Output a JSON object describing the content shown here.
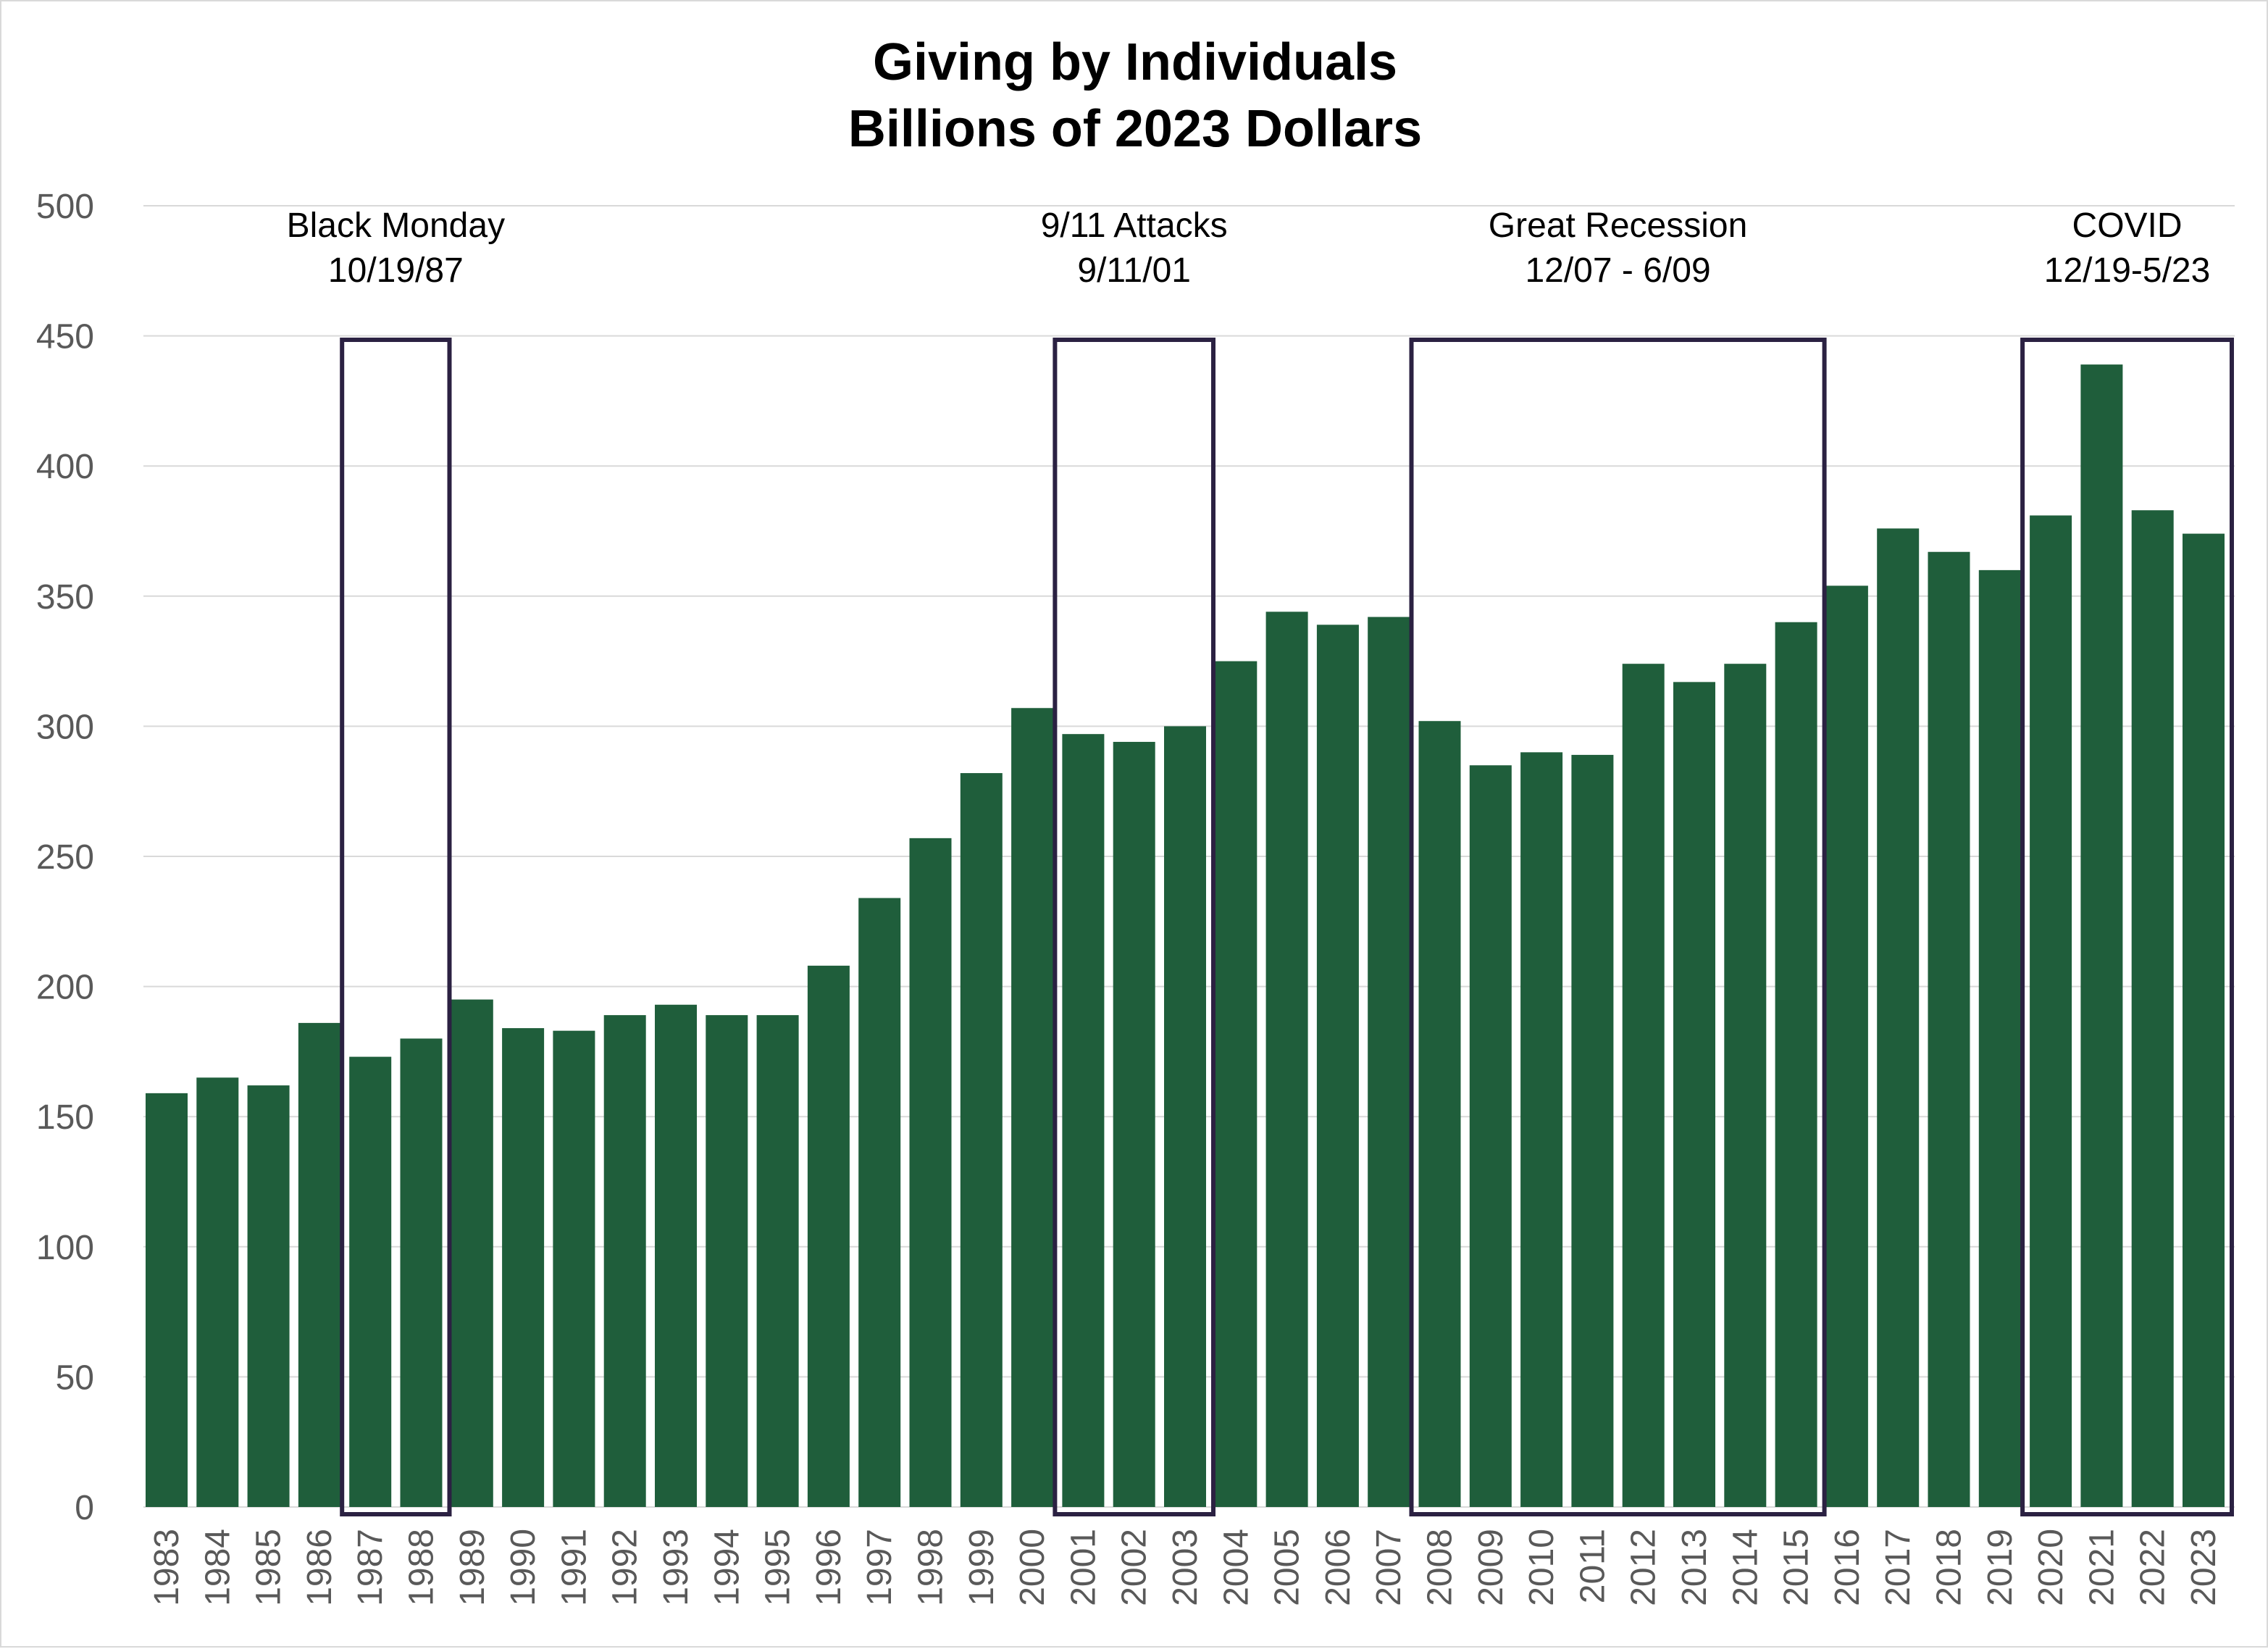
{
  "chart_data": {
    "type": "bar",
    "title": [
      "Giving by Individuals",
      "Billions of 2023 Dollars"
    ],
    "xlabel": "",
    "ylabel": "",
    "ylim": [
      0,
      500
    ],
    "yticks": [
      0,
      50,
      100,
      150,
      200,
      250,
      300,
      350,
      400,
      450,
      500
    ],
    "grid": true,
    "colors": {
      "bar": "#1f5e3b",
      "box": "#2b2142",
      "grid": "#d9d9d9",
      "tick": "#595959"
    },
    "categories": [
      "1983",
      "1984",
      "1985",
      "1986",
      "1987",
      "1988",
      "1989",
      "1990",
      "1991",
      "1992",
      "1993",
      "1994",
      "1995",
      "1996",
      "1997",
      "1998",
      "1999",
      "2000",
      "2001",
      "2002",
      "2003",
      "2004",
      "2005",
      "2006",
      "2007",
      "2008",
      "2009",
      "2010",
      "2011",
      "2012",
      "2013",
      "2014",
      "2015",
      "2016",
      "2017",
      "2018",
      "2019",
      "2020",
      "2021",
      "2022",
      "2023"
    ],
    "values": [
      159,
      165,
      162,
      186,
      173,
      180,
      195,
      184,
      183,
      189,
      193,
      189,
      189,
      208,
      234,
      257,
      282,
      307,
      297,
      294,
      300,
      325,
      344,
      339,
      342,
      302,
      285,
      290,
      289,
      324,
      317,
      324,
      340,
      354,
      376,
      367,
      360,
      381,
      439,
      383,
      374
    ],
    "annotations": [
      {
        "lines": [
          "Black Monday",
          "10/19/87"
        ],
        "from": "1987",
        "to": "1988"
      },
      {
        "lines": [
          "9/11 Attacks",
          "9/11/01"
        ],
        "from": "2001",
        "to": "2003"
      },
      {
        "lines": [
          "Great Recession",
          "12/07 - 6/09"
        ],
        "from": "2008",
        "to": "2015"
      },
      {
        "lines": [
          "COVID",
          "12/19-5/23"
        ],
        "from": "2020",
        "to": "2023"
      }
    ]
  }
}
